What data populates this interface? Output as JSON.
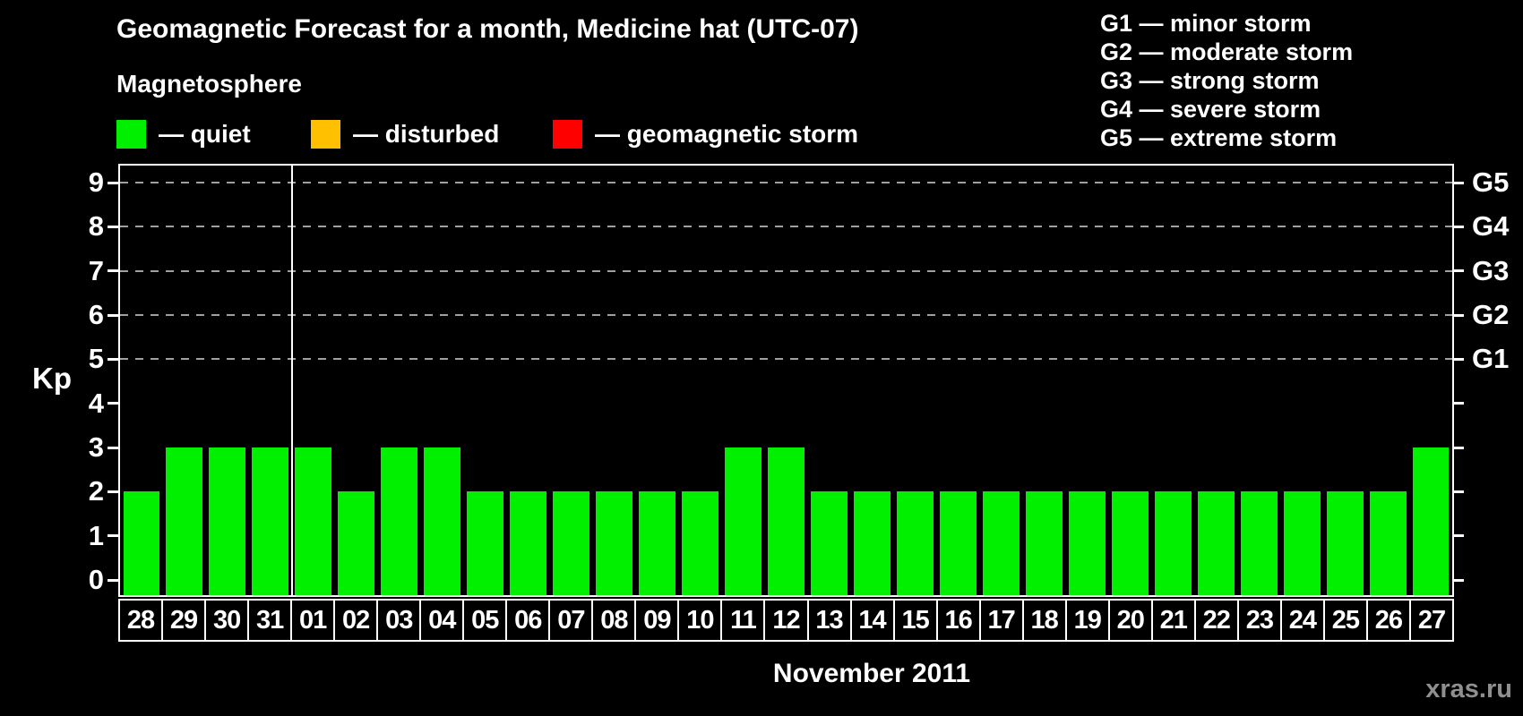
{
  "header": {
    "title": "Geomagnetic Forecast for a month, Medicine hat (UTC-07)",
    "subtitle": "Magnetosphere"
  },
  "magnetosphere_legend": [
    {
      "key": "quiet",
      "color": "#00F000",
      "label": "— quiet"
    },
    {
      "key": "disturbed",
      "color": "#FFC000",
      "label": "— disturbed"
    },
    {
      "key": "storm",
      "color": "#FF0000",
      "label": "— geomagnetic storm"
    }
  ],
  "storm_scale_legend": [
    {
      "text": "G1 — minor storm"
    },
    {
      "text": "G2 — moderate storm"
    },
    {
      "text": "G3 — strong storm"
    },
    {
      "text": "G4 — severe storm"
    },
    {
      "text": "G5 — extreme storm"
    }
  ],
  "axes": {
    "y_label": "Kp",
    "x_caption": "November 2011"
  },
  "watermark": "xras.ru",
  "chart_data": {
    "type": "bar",
    "title": "Geomagnetic Forecast for a month, Medicine hat (UTC-07)",
    "xlabel": "November 2011",
    "ylabel": "Kp",
    "ylim": [
      0,
      9
    ],
    "y_ticks": [
      0,
      1,
      2,
      3,
      4,
      5,
      6,
      7,
      8,
      9
    ],
    "grid_levels": [
      5,
      6,
      7,
      8,
      9
    ],
    "right_axis": [
      {
        "kp": 5,
        "label": "G1"
      },
      {
        "kp": 6,
        "label": "G2"
      },
      {
        "kp": 7,
        "label": "G3"
      },
      {
        "kp": 8,
        "label": "G4"
      },
      {
        "kp": 9,
        "label": "G5"
      }
    ],
    "categories": [
      "28",
      "29",
      "30",
      "31",
      "01",
      "02",
      "03",
      "04",
      "05",
      "06",
      "07",
      "08",
      "09",
      "10",
      "11",
      "12",
      "13",
      "14",
      "15",
      "16",
      "17",
      "18",
      "19",
      "20",
      "21",
      "22",
      "23",
      "24",
      "25",
      "26",
      "27"
    ],
    "values": [
      2,
      3,
      3,
      3,
      3,
      2,
      3,
      3,
      2,
      2,
      2,
      2,
      2,
      2,
      3,
      3,
      2,
      2,
      2,
      2,
      2,
      2,
      2,
      2,
      2,
      2,
      2,
      2,
      2,
      2,
      3
    ],
    "color_thresholds": {
      "disturbed_min": 4,
      "storm_min": 5
    },
    "month_separator_after": 4,
    "legend_position": "top",
    "grid": "dashed-horizontal-on-storm-levels"
  }
}
